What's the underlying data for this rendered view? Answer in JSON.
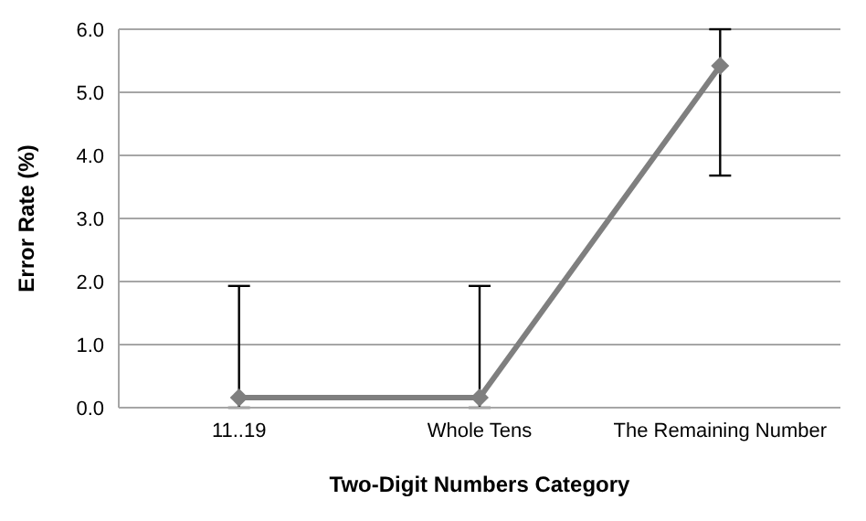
{
  "chart_data": {
    "type": "line",
    "xlabel": "Two-Digit Numbers Category",
    "ylabel": "Error Rate (%)",
    "categories": [
      "11..19",
      "Whole Tens",
      "The Remaining Number"
    ],
    "series": [
      {
        "color": "#7f7f7f",
        "values": [
          0.16,
          0.16,
          5.42
        ],
        "errors": [
          [
            0,
            1.93
          ],
          [
            0,
            1.93
          ],
          [
            3.68,
            6.0
          ]
        ]
      }
    ],
    "ylim": [
      0,
      6
    ],
    "yticks": [
      {
        "value": 0,
        "label": "0.0"
      },
      {
        "value": 1,
        "label": "1.0"
      },
      {
        "value": 2,
        "label": "2.0"
      },
      {
        "value": 3,
        "label": "3.0"
      },
      {
        "value": 4,
        "label": "4.0"
      },
      {
        "value": 5,
        "label": "5.0"
      },
      {
        "value": 6,
        "label": "6.0"
      }
    ],
    "grid": "y",
    "marker": "diamond",
    "legend": false
  }
}
